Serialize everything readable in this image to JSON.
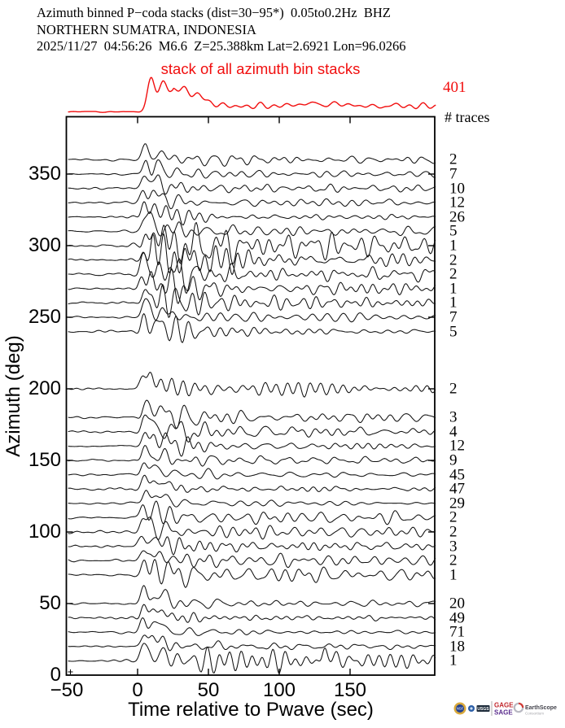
{
  "header": {
    "line1": "Azimuth binned P−coda stacks (dist=30−95*)  0.05to0.2Hz  BHZ",
    "line2": "NORTHERN SUMATRA, INDONESIA",
    "line3": "2025/11/27  04:56:26  M6.6  Z=25.388km Lat=2.6921 Lon=96.0266"
  },
  "stack": {
    "label": "stack of all azimuth bin stacks",
    "total_label": "401",
    "traces_heading": "# traces",
    "color": "#f10e0e"
  },
  "axes": {
    "xlabel": "Time relative to Pwave (sec)",
    "ylabel": "Azimuth (deg)",
    "x_ticks": [
      {
        "t": -50,
        "label": "−50"
      },
      {
        "t": 0,
        "label": "0"
      },
      {
        "t": 50,
        "label": "50"
      },
      {
        "t": 100,
        "label": "100"
      },
      {
        "t": 150,
        "label": "150"
      }
    ],
    "y_ticks": [
      {
        "az": 0,
        "label": "0"
      },
      {
        "az": 50,
        "label": "50"
      },
      {
        "az": 100,
        "label": "100"
      },
      {
        "az": 150,
        "label": "150"
      },
      {
        "az": 200,
        "label": "200"
      },
      {
        "az": 250,
        "label": "250"
      },
      {
        "az": 300,
        "label": "300"
      },
      {
        "az": 350,
        "label": "350"
      }
    ],
    "xlim": [
      -50,
      210
    ],
    "ylim": [
      0,
      390
    ]
  },
  "chart_data": {
    "type": "line",
    "title": "Azimuth binned P-coda stacks (dist=30-95*) 0.05to0.2Hz BHZ",
    "subtitle": "NORTHERN SUMATRA, INDONESIA — 2025/11/27 04:56:26 M6.6 Z=25.388km Lat=2.6921 Lon=96.0266",
    "xlabel": "Time relative to Pwave (sec)",
    "ylabel": "Azimuth (deg)",
    "xlim": [
      -50,
      210
    ],
    "ylim": [
      0,
      390
    ],
    "grid": false,
    "legend": "none",
    "stack_trace": {
      "label": "stack of all azimuth bin stacks",
      "total_traces": 401,
      "color": "#f10e0e"
    },
    "bin_width_deg": 10,
    "bins": [
      {
        "azimuth": 360,
        "n_traces": 2
      },
      {
        "azimuth": 350,
        "n_traces": 7
      },
      {
        "azimuth": 340,
        "n_traces": 10
      },
      {
        "azimuth": 330,
        "n_traces": 12
      },
      {
        "azimuth": 320,
        "n_traces": 26
      },
      {
        "azimuth": 310,
        "n_traces": 5,
        "coda_boost": 1.35
      },
      {
        "azimuth": 300,
        "n_traces": 1,
        "coda_boost": 1.5
      },
      {
        "azimuth": 290,
        "n_traces": 2,
        "coda_boost": 1.45
      },
      {
        "azimuth": 280,
        "n_traces": 2,
        "coda_boost": 1.2
      },
      {
        "azimuth": 270,
        "n_traces": 1
      },
      {
        "azimuth": 260,
        "n_traces": 1
      },
      {
        "azimuth": 250,
        "n_traces": 7
      },
      {
        "azimuth": 240,
        "n_traces": 5
      },
      {
        "azimuth": 200,
        "n_traces": 2
      },
      {
        "azimuth": 180,
        "n_traces": 3
      },
      {
        "azimuth": 170,
        "n_traces": 4
      },
      {
        "azimuth": 160,
        "n_traces": 12
      },
      {
        "azimuth": 150,
        "n_traces": 9
      },
      {
        "azimuth": 140,
        "n_traces": 45
      },
      {
        "azimuth": 130,
        "n_traces": 47
      },
      {
        "azimuth": 120,
        "n_traces": 29
      },
      {
        "azimuth": 110,
        "n_traces": 2
      },
      {
        "azimuth": 100,
        "n_traces": 2
      },
      {
        "azimuth": 90,
        "n_traces": 3
      },
      {
        "azimuth": 80,
        "n_traces": 2
      },
      {
        "azimuth": 70,
        "n_traces": 1
      },
      {
        "azimuth": 50,
        "n_traces": 20
      },
      {
        "azimuth": 40,
        "n_traces": 49
      },
      {
        "azimuth": 30,
        "n_traces": 71
      },
      {
        "azimuth": 20,
        "n_traces": 18
      },
      {
        "azimuth": 10,
        "n_traces": 1,
        "spike_t": 132,
        "spike_h": 13
      }
    ]
  },
  "footer": {
    "nsf": "NSF",
    "usgs": "USGS",
    "gage": "GAGE",
    "sage": "SAGE",
    "earthscope": "EarthScope",
    "consortium": "Consortium"
  }
}
